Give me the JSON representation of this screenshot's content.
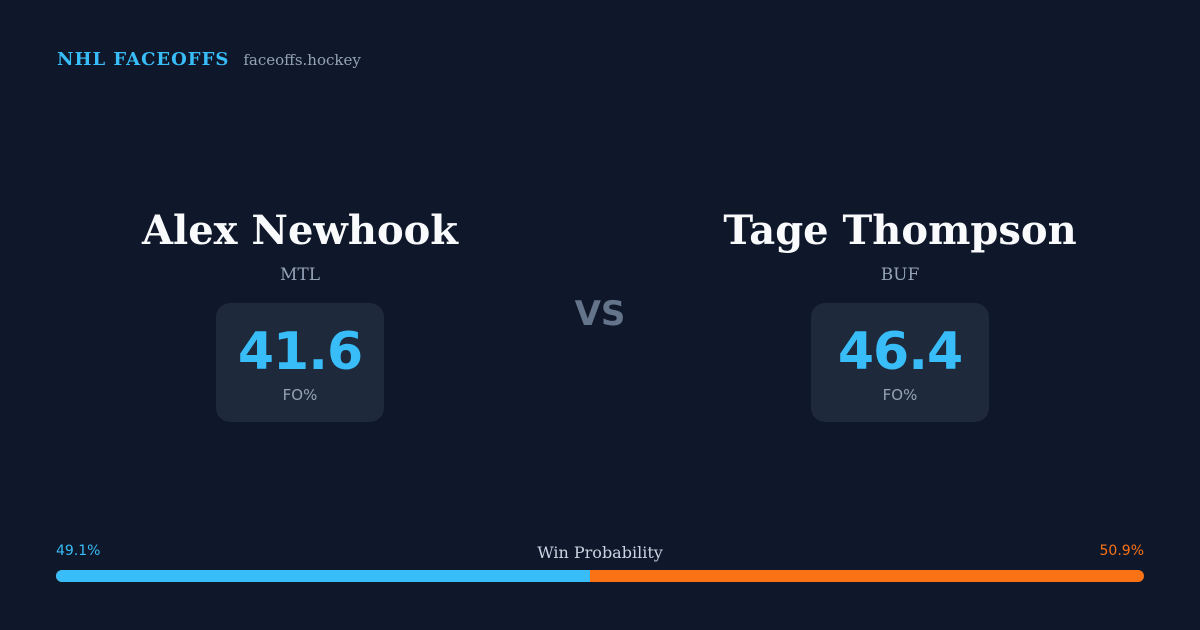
{
  "brand": {
    "title": "NHL FACEOFFS",
    "url": "faceoffs.hockey"
  },
  "players": [
    {
      "name": "Alex Newhook",
      "team": "MTL",
      "stat_value": "41.6",
      "stat_label": "FO%"
    },
    {
      "name": "Tage Thompson",
      "team": "BUF",
      "stat_value": "46.4",
      "stat_label": "FO%"
    }
  ],
  "vs_label": "VS",
  "win_probability": {
    "title": "Win Probability",
    "left_label": "49.1%",
    "right_label": "50.9%",
    "left_fraction": 0.491,
    "colors": {
      "left": "#38bdf8",
      "right": "#f97316"
    }
  },
  "colors": {
    "background": "#0f172a",
    "accent": "#38bdf8",
    "card": "#1e293b"
  }
}
